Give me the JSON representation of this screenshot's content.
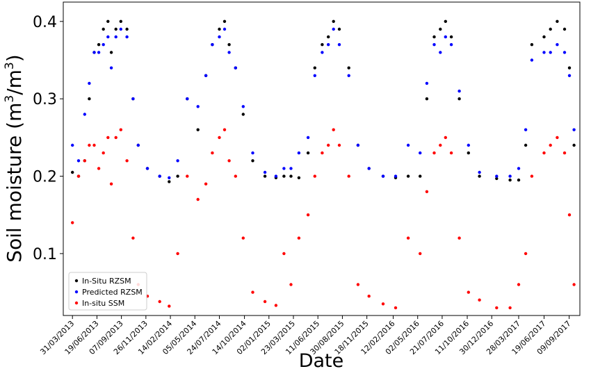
{
  "chart_data": {
    "type": "scatter",
    "title": "",
    "xlabel": "Date",
    "ylabel": "Soil moisture (m³/m³)",
    "ylabel_parts": {
      "text": "Soil moisture (m",
      "sup1": "3",
      "mid": "/m",
      "sup2": "3",
      "end": ")"
    },
    "xlim": [
      "2013-03-01",
      "2017-10-14"
    ],
    "ylim": [
      0.02,
      0.425
    ],
    "yticks": [
      0.1,
      0.2,
      0.3,
      0.4
    ],
    "ytick_labels": [
      "0.1",
      "0.2",
      "0.3",
      "0.4"
    ],
    "xtick_dates": [
      "2013-03-31",
      "2013-06-19",
      "2013-09-07",
      "2013-11-26",
      "2014-02-14",
      "2014-05-05",
      "2014-07-24",
      "2014-10-14",
      "2015-01-02",
      "2015-03-23",
      "2015-06-11",
      "2015-08-30",
      "2015-11-18",
      "2016-02-12",
      "2016-05-02",
      "2016-07-21",
      "2016-10-11",
      "2016-12-30",
      "2017-03-28",
      "2017-06-19",
      "2017-09-09"
    ],
    "xtick_labels": [
      "31/03/2013",
      "19/06/2013",
      "07/09/2013",
      "26/11/2013",
      "14/02/2014",
      "05/05/2014",
      "24/07/2014",
      "14/10/2014",
      "02/01/2015",
      "23/03/2015",
      "11/06/2015",
      "30/08/2015",
      "18/11/2015",
      "12/02/2016",
      "02/05/2016",
      "21/07/2016",
      "11/10/2016",
      "30/12/2016",
      "28/03/2017",
      "19/06/2017",
      "09/09/2017"
    ],
    "grid": false,
    "legend_position": "lower-left",
    "series": [
      {
        "name": "In-Situ RZSM",
        "color": "#000000",
        "points": [
          [
            "2013-03-31",
            0.205
          ],
          [
            "2013-04-20",
            0.2
          ],
          [
            "2013-05-10",
            0.22
          ],
          [
            "2013-05-25",
            0.3
          ],
          [
            "2013-06-10",
            0.36
          ],
          [
            "2013-06-25",
            0.37
          ],
          [
            "2013-07-10",
            0.39
          ],
          [
            "2013-07-25",
            0.4
          ],
          [
            "2013-08-05",
            0.36
          ],
          [
            "2013-08-20",
            0.39
          ],
          [
            "2013-09-05",
            0.4
          ],
          [
            "2013-09-25",
            0.39
          ],
          [
            "2013-10-15",
            0.3
          ],
          [
            "2013-11-01",
            0.24
          ],
          [
            "2013-12-01",
            0.21
          ],
          [
            "2014-01-10",
            0.2
          ],
          [
            "2014-02-10",
            0.193
          ],
          [
            "2014-03-10",
            0.2
          ],
          [
            "2014-04-10",
            0.3
          ],
          [
            "2014-05-15",
            0.26
          ],
          [
            "2014-06-10",
            0.33
          ],
          [
            "2014-07-01",
            0.37
          ],
          [
            "2014-07-24",
            0.39
          ],
          [
            "2014-08-10",
            0.4
          ],
          [
            "2014-08-25",
            0.37
          ],
          [
            "2014-09-15",
            0.34
          ],
          [
            "2014-10-10",
            0.28
          ],
          [
            "2014-11-10",
            0.22
          ],
          [
            "2014-12-20",
            0.2
          ],
          [
            "2015-01-25",
            0.198
          ],
          [
            "2015-02-20",
            0.2
          ],
          [
            "2015-03-15",
            0.2
          ],
          [
            "2015-04-10",
            0.198
          ],
          [
            "2015-05-10",
            0.23
          ],
          [
            "2015-06-01",
            0.34
          ],
          [
            "2015-06-25",
            0.37
          ],
          [
            "2015-07-15",
            0.38
          ],
          [
            "2015-08-01",
            0.4
          ],
          [
            "2015-08-20",
            0.39
          ],
          [
            "2015-09-20",
            0.34
          ],
          [
            "2015-10-20",
            0.24
          ],
          [
            "2015-11-25",
            0.21
          ],
          [
            "2016-01-10",
            0.2
          ],
          [
            "2016-02-20",
            0.198
          ],
          [
            "2016-04-01",
            0.2
          ],
          [
            "2016-05-10",
            0.2
          ],
          [
            "2016-06-01",
            0.3
          ],
          [
            "2016-06-25",
            0.38
          ],
          [
            "2016-07-15",
            0.39
          ],
          [
            "2016-08-01",
            0.4
          ],
          [
            "2016-08-20",
            0.38
          ],
          [
            "2016-09-15",
            0.3
          ],
          [
            "2016-10-15",
            0.23
          ],
          [
            "2016-11-20",
            0.2
          ],
          [
            "2017-01-15",
            0.197
          ],
          [
            "2017-02-28",
            0.195
          ],
          [
            "2017-03-28",
            0.195
          ],
          [
            "2017-04-20",
            0.24
          ],
          [
            "2017-05-10",
            0.37
          ],
          [
            "2017-06-19",
            0.38
          ],
          [
            "2017-07-10",
            0.39
          ],
          [
            "2017-08-01",
            0.4
          ],
          [
            "2017-08-25",
            0.39
          ],
          [
            "2017-09-10",
            0.34
          ],
          [
            "2017-09-25",
            0.24
          ]
        ]
      },
      {
        "name": "Predicted RZSM",
        "color": "#0000ff",
        "points": [
          [
            "2013-03-31",
            0.24
          ],
          [
            "2013-04-20",
            0.22
          ],
          [
            "2013-05-10",
            0.28
          ],
          [
            "2013-05-25",
            0.32
          ],
          [
            "2013-06-10",
            0.36
          ],
          [
            "2013-06-25",
            0.36
          ],
          [
            "2013-07-10",
            0.37
          ],
          [
            "2013-07-25",
            0.38
          ],
          [
            "2013-08-05",
            0.34
          ],
          [
            "2013-08-20",
            0.38
          ],
          [
            "2013-09-05",
            0.39
          ],
          [
            "2013-09-25",
            0.38
          ],
          [
            "2013-10-15",
            0.3
          ],
          [
            "2013-11-01",
            0.24
          ],
          [
            "2013-12-01",
            0.21
          ],
          [
            "2014-01-10",
            0.2
          ],
          [
            "2014-02-10",
            0.198
          ],
          [
            "2014-03-10",
            0.22
          ],
          [
            "2014-04-10",
            0.3
          ],
          [
            "2014-05-15",
            0.29
          ],
          [
            "2014-06-10",
            0.33
          ],
          [
            "2014-07-01",
            0.37
          ],
          [
            "2014-07-24",
            0.38
          ],
          [
            "2014-08-10",
            0.39
          ],
          [
            "2014-08-25",
            0.36
          ],
          [
            "2014-09-15",
            0.34
          ],
          [
            "2014-10-10",
            0.29
          ],
          [
            "2014-11-10",
            0.23
          ],
          [
            "2014-12-20",
            0.205
          ],
          [
            "2015-01-25",
            0.2
          ],
          [
            "2015-02-20",
            0.21
          ],
          [
            "2015-03-15",
            0.21
          ],
          [
            "2015-04-10",
            0.23
          ],
          [
            "2015-05-10",
            0.25
          ],
          [
            "2015-06-01",
            0.33
          ],
          [
            "2015-06-25",
            0.36
          ],
          [
            "2015-07-15",
            0.37
          ],
          [
            "2015-08-01",
            0.39
          ],
          [
            "2015-08-20",
            0.37
          ],
          [
            "2015-09-20",
            0.33
          ],
          [
            "2015-10-20",
            0.24
          ],
          [
            "2015-11-25",
            0.21
          ],
          [
            "2016-01-10",
            0.2
          ],
          [
            "2016-02-20",
            0.2
          ],
          [
            "2016-04-01",
            0.24
          ],
          [
            "2016-05-10",
            0.23
          ],
          [
            "2016-06-01",
            0.32
          ],
          [
            "2016-06-25",
            0.37
          ],
          [
            "2016-07-15",
            0.36
          ],
          [
            "2016-08-01",
            0.38
          ],
          [
            "2016-08-20",
            0.37
          ],
          [
            "2016-09-15",
            0.31
          ],
          [
            "2016-10-15",
            0.24
          ],
          [
            "2016-11-20",
            0.205
          ],
          [
            "2017-01-15",
            0.2
          ],
          [
            "2017-02-28",
            0.2
          ],
          [
            "2017-03-28",
            0.21
          ],
          [
            "2017-04-20",
            0.26
          ],
          [
            "2017-05-10",
            0.35
          ],
          [
            "2017-06-19",
            0.36
          ],
          [
            "2017-07-10",
            0.36
          ],
          [
            "2017-08-01",
            0.37
          ],
          [
            "2017-08-25",
            0.36
          ],
          [
            "2017-09-10",
            0.33
          ],
          [
            "2017-09-25",
            0.26
          ]
        ]
      },
      {
        "name": "In-situ SSM",
        "color": "#ff0000",
        "points": [
          [
            "2013-03-31",
            0.14
          ],
          [
            "2013-04-20",
            0.2
          ],
          [
            "2013-05-10",
            0.22
          ],
          [
            "2013-05-25",
            0.24
          ],
          [
            "2013-06-10",
            0.24
          ],
          [
            "2013-06-25",
            0.21
          ],
          [
            "2013-07-10",
            0.23
          ],
          [
            "2013-07-25",
            0.25
          ],
          [
            "2013-08-05",
            0.19
          ],
          [
            "2013-08-20",
            0.25
          ],
          [
            "2013-09-05",
            0.26
          ],
          [
            "2013-09-25",
            0.22
          ],
          [
            "2013-10-15",
            0.12
          ],
          [
            "2013-11-01",
            0.06
          ],
          [
            "2013-12-01",
            0.045
          ],
          [
            "2014-01-10",
            0.038
          ],
          [
            "2014-02-10",
            0.032
          ],
          [
            "2014-03-10",
            0.1
          ],
          [
            "2014-04-10",
            0.2
          ],
          [
            "2014-05-15",
            0.17
          ],
          [
            "2014-06-10",
            0.19
          ],
          [
            "2014-07-01",
            0.23
          ],
          [
            "2014-07-24",
            0.25
          ],
          [
            "2014-08-10",
            0.26
          ],
          [
            "2014-08-25",
            0.22
          ],
          [
            "2014-09-15",
            0.2
          ],
          [
            "2014-10-10",
            0.12
          ],
          [
            "2014-11-10",
            0.05
          ],
          [
            "2014-12-20",
            0.038
          ],
          [
            "2015-01-25",
            0.033
          ],
          [
            "2015-02-20",
            0.1
          ],
          [
            "2015-03-15",
            0.06
          ],
          [
            "2015-04-10",
            0.12
          ],
          [
            "2015-05-10",
            0.15
          ],
          [
            "2015-06-01",
            0.2
          ],
          [
            "2015-06-25",
            0.23
          ],
          [
            "2015-07-15",
            0.24
          ],
          [
            "2015-08-01",
            0.26
          ],
          [
            "2015-08-20",
            0.24
          ],
          [
            "2015-09-20",
            0.2
          ],
          [
            "2015-10-20",
            0.06
          ],
          [
            "2015-11-25",
            0.045
          ],
          [
            "2016-01-10",
            0.035
          ],
          [
            "2016-02-20",
            0.03
          ],
          [
            "2016-04-01",
            0.12
          ],
          [
            "2016-05-10",
            0.1
          ],
          [
            "2016-06-01",
            0.18
          ],
          [
            "2016-06-25",
            0.23
          ],
          [
            "2016-07-15",
            0.24
          ],
          [
            "2016-08-01",
            0.25
          ],
          [
            "2016-08-20",
            0.23
          ],
          [
            "2016-09-15",
            0.12
          ],
          [
            "2016-10-15",
            0.05
          ],
          [
            "2016-11-20",
            0.04
          ],
          [
            "2017-01-15",
            0.03
          ],
          [
            "2017-02-28",
            0.03
          ],
          [
            "2017-03-28",
            0.06
          ],
          [
            "2017-04-20",
            0.1
          ],
          [
            "2017-05-10",
            0.2
          ],
          [
            "2017-06-19",
            0.23
          ],
          [
            "2017-07-10",
            0.24
          ],
          [
            "2017-08-01",
            0.25
          ],
          [
            "2017-08-25",
            0.23
          ],
          [
            "2017-09-10",
            0.15
          ],
          [
            "2017-09-25",
            0.06
          ]
        ]
      }
    ]
  }
}
